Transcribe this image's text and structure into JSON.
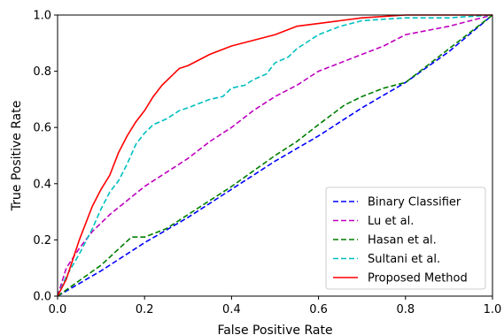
{
  "chart_data": {
    "type": "line",
    "title": "",
    "xlabel": "False Positive Rate",
    "ylabel": "True Positive Rate",
    "xlim": [
      0,
      1
    ],
    "ylim": [
      0,
      1
    ],
    "xticks": [
      "0.0",
      "0.2",
      "0.4",
      "0.6",
      "0.8",
      "1.0"
    ],
    "yticks": [
      "0.0",
      "0.2",
      "0.4",
      "0.6",
      "0.8",
      "1.0"
    ],
    "grid": false,
    "legend_position": "lower-right",
    "series": [
      {
        "name": "Binary Classifier",
        "color": "#0000ff",
        "style": "dashed",
        "points": [
          [
            0,
            0
          ],
          [
            0.1,
            0.09
          ],
          [
            0.2,
            0.19
          ],
          [
            0.3,
            0.28
          ],
          [
            0.4,
            0.38
          ],
          [
            0.5,
            0.48
          ],
          [
            0.6,
            0.57
          ],
          [
            0.7,
            0.67
          ],
          [
            0.8,
            0.76
          ],
          [
            0.9,
            0.87
          ],
          [
            1,
            1
          ]
        ]
      },
      {
        "name": "Lu et al.",
        "color": "#bf00bf",
        "style": "dashed",
        "points": [
          [
            0,
            0
          ],
          [
            0.02,
            0.1
          ],
          [
            0.05,
            0.17
          ],
          [
            0.08,
            0.23
          ],
          [
            0.12,
            0.29
          ],
          [
            0.16,
            0.34
          ],
          [
            0.2,
            0.39
          ],
          [
            0.25,
            0.44
          ],
          [
            0.3,
            0.49
          ],
          [
            0.35,
            0.55
          ],
          [
            0.4,
            0.6
          ],
          [
            0.45,
            0.66
          ],
          [
            0.5,
            0.71
          ],
          [
            0.55,
            0.75
          ],
          [
            0.6,
            0.8
          ],
          [
            0.65,
            0.83
          ],
          [
            0.7,
            0.86
          ],
          [
            0.75,
            0.89
          ],
          [
            0.8,
            0.93
          ],
          [
            0.9,
            0.96
          ],
          [
            1,
            1
          ]
        ]
      },
      {
        "name": "Hasan et al.",
        "color": "#007f00",
        "style": "dashed",
        "points": [
          [
            0,
            0
          ],
          [
            0.1,
            0.11
          ],
          [
            0.17,
            0.21
          ],
          [
            0.2,
            0.21
          ],
          [
            0.25,
            0.24
          ],
          [
            0.3,
            0.29
          ],
          [
            0.4,
            0.39
          ],
          [
            0.5,
            0.5
          ],
          [
            0.55,
            0.55
          ],
          [
            0.6,
            0.61
          ],
          [
            0.66,
            0.68
          ],
          [
            0.7,
            0.71
          ],
          [
            0.75,
            0.74
          ],
          [
            0.8,
            0.76
          ],
          [
            0.85,
            0.82
          ],
          [
            0.9,
            0.88
          ],
          [
            0.95,
            0.94
          ],
          [
            1,
            1
          ]
        ]
      },
      {
        "name": "Sultani et al.",
        "color": "#00bfbf",
        "style": "dashed",
        "points": [
          [
            0,
            0
          ],
          [
            0.02,
            0.07
          ],
          [
            0.05,
            0.15
          ],
          [
            0.08,
            0.24
          ],
          [
            0.1,
            0.31
          ],
          [
            0.12,
            0.37
          ],
          [
            0.14,
            0.41
          ],
          [
            0.16,
            0.47
          ],
          [
            0.18,
            0.54
          ],
          [
            0.2,
            0.58
          ],
          [
            0.22,
            0.61
          ],
          [
            0.25,
            0.63
          ],
          [
            0.28,
            0.66
          ],
          [
            0.3,
            0.67
          ],
          [
            0.35,
            0.7
          ],
          [
            0.38,
            0.71
          ],
          [
            0.4,
            0.74
          ],
          [
            0.43,
            0.75
          ],
          [
            0.45,
            0.77
          ],
          [
            0.48,
            0.79
          ],
          [
            0.5,
            0.83
          ],
          [
            0.53,
            0.85
          ],
          [
            0.55,
            0.88
          ],
          [
            0.58,
            0.91
          ],
          [
            0.6,
            0.93
          ],
          [
            0.65,
            0.96
          ],
          [
            0.7,
            0.98
          ],
          [
            0.8,
            0.99
          ],
          [
            0.9,
            0.99
          ],
          [
            1,
            1
          ]
        ]
      },
      {
        "name": "Proposed Method",
        "color": "#ff0000",
        "style": "solid",
        "points": [
          [
            0,
            0
          ],
          [
            0.02,
            0.06
          ],
          [
            0.05,
            0.2
          ],
          [
            0.08,
            0.32
          ],
          [
            0.1,
            0.38
          ],
          [
            0.12,
            0.43
          ],
          [
            0.14,
            0.51
          ],
          [
            0.16,
            0.57
          ],
          [
            0.18,
            0.62
          ],
          [
            0.2,
            0.66
          ],
          [
            0.22,
            0.71
          ],
          [
            0.24,
            0.75
          ],
          [
            0.26,
            0.78
          ],
          [
            0.28,
            0.81
          ],
          [
            0.3,
            0.82
          ],
          [
            0.35,
            0.86
          ],
          [
            0.4,
            0.89
          ],
          [
            0.45,
            0.91
          ],
          [
            0.5,
            0.93
          ],
          [
            0.55,
            0.96
          ],
          [
            0.6,
            0.97
          ],
          [
            0.65,
            0.98
          ],
          [
            0.7,
            0.99
          ],
          [
            0.8,
            1.0
          ],
          [
            0.9,
            1.0
          ],
          [
            1,
            1
          ]
        ]
      }
    ]
  }
}
